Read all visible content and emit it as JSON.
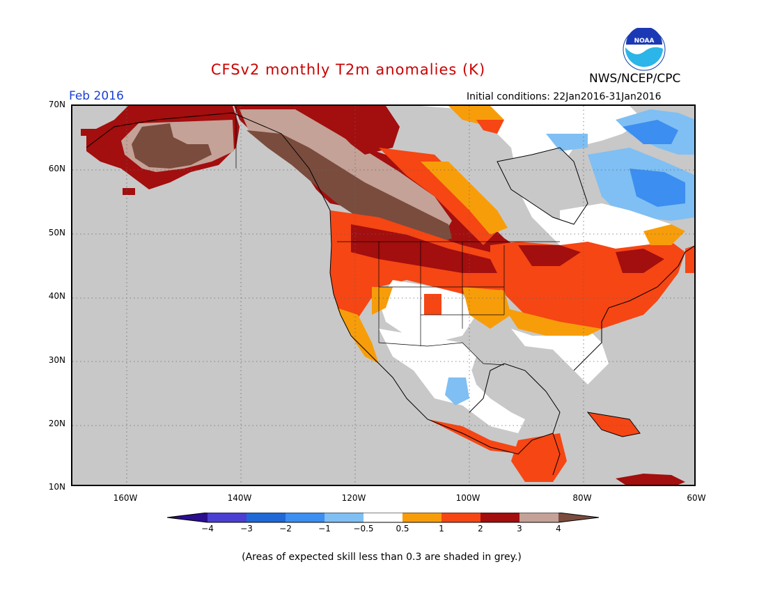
{
  "header": {
    "title": "CFSv2 monthly T2m anomalies (K)",
    "agency": "NWS/NCEP/CPC",
    "month": "Feb 2016",
    "initial_conditions": "Initial conditions: 22Jan2016-31Jan2016",
    "logo_text": "NOAA"
  },
  "axes": {
    "lat_labels": [
      "70N",
      "60N",
      "50N",
      "40N",
      "30N",
      "20N",
      "10N"
    ],
    "lon_labels": [
      "160W",
      "140W",
      "120W",
      "100W",
      "80W",
      "60W"
    ]
  },
  "legend": {
    "tick_labels": [
      "−4",
      "−3",
      "−2",
      "−1",
      "−0.5",
      "0.5",
      "1",
      "2",
      "3",
      "4"
    ],
    "colors": [
      "#2a0f8f",
      "#4a3fd1",
      "#1f68d6",
      "#3c8ef0",
      "#7fbff3",
      "#ffffff",
      "#f79d0a",
      "#f54614",
      "#a30e0e",
      "#c4a297",
      "#7a4c3e"
    ]
  },
  "footer": {
    "skill_note": "(Areas of expected skill less than 0.3 are shaded in grey.)"
  },
  "colors": {
    "ocean_grey": "#c8c8c8",
    "title_red": "#cc0000",
    "month_blue": "#1a3fd6"
  }
}
